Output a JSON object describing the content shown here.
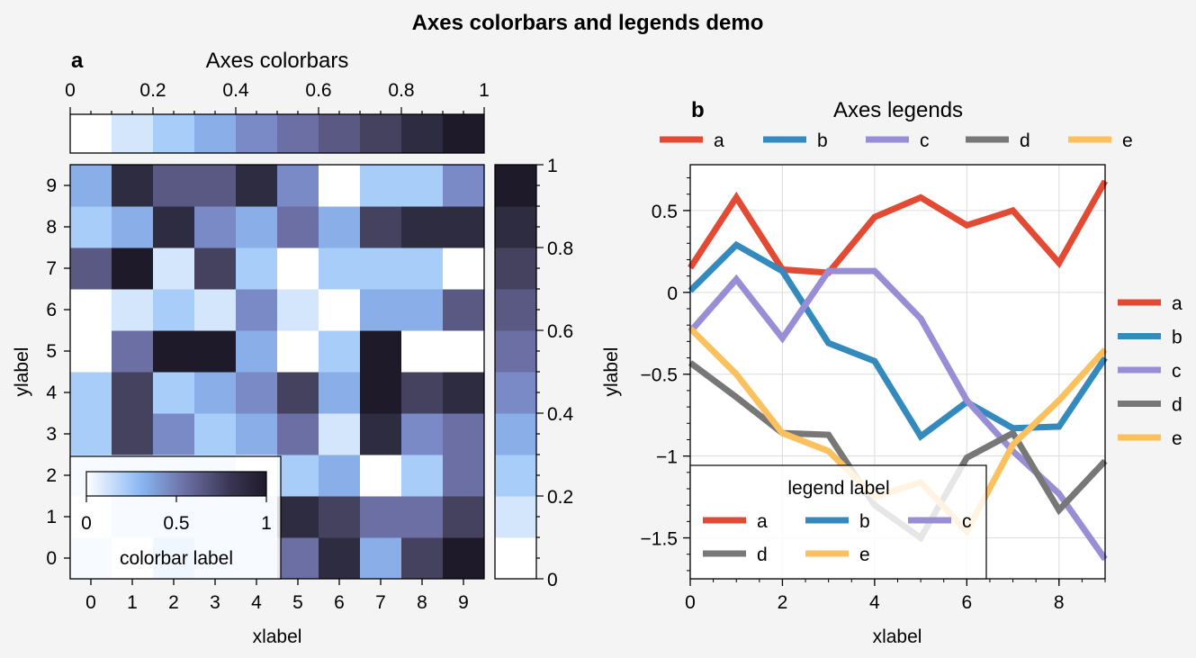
{
  "suptitle": "Axes colorbars and legends demo",
  "colors": {
    "cmap": [
      "#ffffff",
      "#d4e6fb",
      "#a7cdf8",
      "#89aee8",
      "#7a8ac7",
      "#6b6fa3",
      "#5a5984",
      "#454260",
      "#2e2c41",
      "#1f1a2a"
    ],
    "series": {
      "a": "#e24a33",
      "b": "#348abd",
      "c": "#988ed5",
      "d": "#777777",
      "e": "#fbc15e"
    }
  },
  "chart_data": [
    {
      "type": "heatmap",
      "panel_label": "a",
      "title": "Axes colorbars",
      "xlabel": "xlabel",
      "ylabel": "ylabel",
      "xticks": [
        "0",
        "1",
        "2",
        "3",
        "4",
        "5",
        "6",
        "7",
        "8",
        "9"
      ],
      "yticks": [
        "0",
        "1",
        "2",
        "3",
        "4",
        "5",
        "6",
        "7",
        "8",
        "9"
      ],
      "clim": [
        0,
        1
      ],
      "values": [
        [
          0.17,
          0.05,
          0.25,
          0.17,
          0.15,
          0.55,
          0.85,
          0.35,
          0.75,
          0.95
        ],
        [
          0.05,
          0.17,
          0.17,
          0.17,
          0.15,
          0.85,
          0.75,
          0.55,
          0.55,
          0.75
        ],
        [
          0.12,
          0.17,
          0.17,
          0.17,
          0.05,
          0.25,
          0.35,
          0.02,
          0.25,
          0.55
        ],
        [
          0.25,
          0.75,
          0.45,
          0.25,
          0.35,
          0.55,
          0.15,
          0.85,
          0.45,
          0.55
        ],
        [
          0.25,
          0.75,
          0.25,
          0.35,
          0.45,
          0.75,
          0.35,
          0.95,
          0.75,
          0.85
        ],
        [
          0.08,
          0.55,
          0.95,
          0.95,
          0.35,
          0.08,
          0.25,
          0.95,
          0.02,
          0.03
        ],
        [
          0.02,
          0.15,
          0.25,
          0.15,
          0.45,
          0.15,
          0.08,
          0.35,
          0.35,
          0.65
        ],
        [
          0.65,
          0.95,
          0.15,
          0.75,
          0.25,
          0.02,
          0.25,
          0.25,
          0.25,
          0.03
        ],
        [
          0.25,
          0.35,
          0.85,
          0.45,
          0.35,
          0.55,
          0.35,
          0.75,
          0.85,
          0.85
        ],
        [
          0.35,
          0.85,
          0.65,
          0.65,
          0.85,
          0.45,
          0.08,
          0.25,
          0.25,
          0.45
        ]
      ],
      "top_colorbar": {
        "ticks": [
          "0",
          "0.2",
          "0.4",
          "0.6",
          "0.8",
          "1"
        ]
      },
      "right_colorbar": {
        "ticks": [
          "0",
          "0.2",
          "0.4",
          "0.6",
          "0.8",
          "1"
        ]
      },
      "inset_colorbar": {
        "ticks": [
          "0",
          "0.5",
          "1"
        ],
        "label": "colorbar label"
      }
    },
    {
      "type": "line",
      "panel_label": "b",
      "title": "Axes legends",
      "xlabel": "xlabel",
      "ylabel": "ylabel",
      "xlim": [
        0,
        9
      ],
      "ylim": [
        -1.75,
        0.78
      ],
      "xticks": [
        "0",
        "2",
        "4",
        "6",
        "8"
      ],
      "yticks": [
        "0.5",
        "0",
        "−0.5",
        "−1",
        "−1.5"
      ],
      "x": [
        0,
        1,
        2,
        3,
        4,
        5,
        6,
        7,
        8,
        9
      ],
      "grid": true,
      "series": [
        {
          "name": "a",
          "values": [
            0.15,
            0.58,
            0.14,
            0.12,
            0.46,
            0.58,
            0.41,
            0.5,
            0.18,
            0.68
          ]
        },
        {
          "name": "b",
          "values": [
            0.01,
            0.29,
            0.13,
            -0.31,
            -0.42,
            -0.88,
            -0.67,
            -0.83,
            -0.82,
            -0.4
          ]
        },
        {
          "name": "c",
          "values": [
            -0.24,
            0.08,
            -0.28,
            0.13,
            0.13,
            -0.16,
            -0.66,
            -0.97,
            -1.23,
            -1.63
          ]
        },
        {
          "name": "d",
          "values": [
            -0.43,
            -0.64,
            -0.86,
            -0.87,
            -1.3,
            -1.5,
            -1.01,
            -0.86,
            -1.33,
            -1.03
          ]
        },
        {
          "name": "e",
          "values": [
            -0.22,
            -0.5,
            -0.86,
            -0.97,
            -1.25,
            -1.16,
            -1.46,
            -0.93,
            -0.66,
            -0.35
          ]
        }
      ],
      "legend_top": [
        "a",
        "b",
        "c",
        "d",
        "e"
      ],
      "legend_right": [
        "a",
        "b",
        "c",
        "d",
        "e"
      ],
      "legend_inner": {
        "title": "legend label",
        "items": [
          "a",
          "b",
          "c",
          "d",
          "e"
        ]
      }
    }
  ]
}
